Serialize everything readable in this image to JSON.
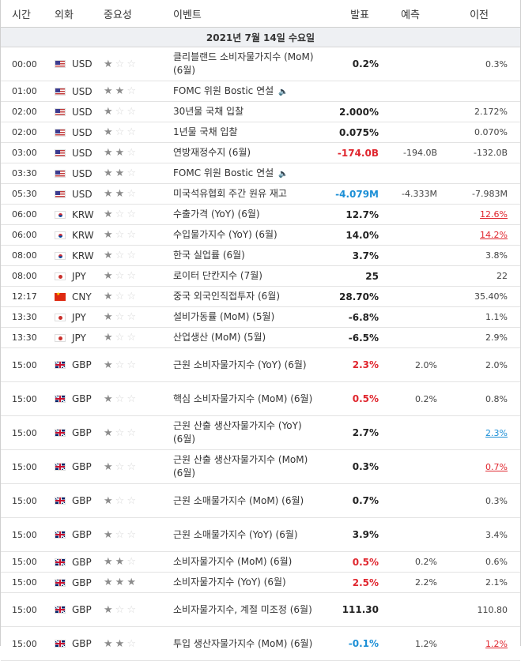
{
  "headers": {
    "time": "시간",
    "currency": "외화",
    "importance": "중요성",
    "event": "이벤트",
    "actual": "발표",
    "forecast": "예측",
    "previous": "이전"
  },
  "date_label": "2021년 7월 14일 수요일",
  "colors": {
    "positive": "#e0262e",
    "negative": "#1c8fd6",
    "neutral": "#222222",
    "date_row_bg": "#eef0f3"
  },
  "events": [
    {
      "time": "00:00",
      "flag": "US",
      "currency": "USD",
      "stars": 1,
      "name": "클리블랜드 소비자물가지수 (MoM) (6월)",
      "speaker": false,
      "actual": "0.2%",
      "actual_color": "black",
      "forecast": "",
      "previous": "0.3%",
      "previous_style": "normal"
    },
    {
      "time": "01:00",
      "flag": "US",
      "currency": "USD",
      "stars": 2,
      "name": "FOMC 위원 Bostic 연설",
      "speaker": true,
      "actual": "",
      "actual_color": "black",
      "forecast": "",
      "previous": "",
      "previous_style": "normal"
    },
    {
      "time": "02:00",
      "flag": "US",
      "currency": "USD",
      "stars": 1,
      "name": "30년물 국채 입찰",
      "speaker": false,
      "actual": "2.000%",
      "actual_color": "black",
      "forecast": "",
      "previous": "2.172%",
      "previous_style": "normal"
    },
    {
      "time": "02:00",
      "flag": "US",
      "currency": "USD",
      "stars": 1,
      "name": "1년물 국채 입찰",
      "speaker": false,
      "actual": "0.075%",
      "actual_color": "black",
      "forecast": "",
      "previous": "0.070%",
      "previous_style": "normal"
    },
    {
      "time": "03:00",
      "flag": "US",
      "currency": "USD",
      "stars": 2,
      "name": "연방재정수지 (6월)",
      "speaker": false,
      "actual": "-174.0B",
      "actual_color": "red",
      "forecast": "-194.0B",
      "previous": "-132.0B",
      "previous_style": "normal"
    },
    {
      "time": "03:30",
      "flag": "US",
      "currency": "USD",
      "stars": 2,
      "name": "FOMC 위원 Bostic 연설",
      "speaker": true,
      "actual": "",
      "actual_color": "black",
      "forecast": "",
      "previous": "",
      "previous_style": "normal"
    },
    {
      "time": "05:30",
      "flag": "US",
      "currency": "USD",
      "stars": 2,
      "name": "미국석유협회 주간 원유 재고",
      "speaker": false,
      "actual": "-4.079M",
      "actual_color": "blue",
      "forecast": "-4.333M",
      "previous": "-7.983M",
      "previous_style": "normal"
    },
    {
      "time": "06:00",
      "flag": "KR",
      "currency": "KRW",
      "stars": 1,
      "name": "수출가격 (YoY) (6월)",
      "speaker": false,
      "actual": "12.7%",
      "actual_color": "black",
      "forecast": "",
      "previous": "12.6%",
      "previous_style": "ul-red"
    },
    {
      "time": "06:00",
      "flag": "KR",
      "currency": "KRW",
      "stars": 1,
      "name": "수입물가지수 (YoY) (6월)",
      "speaker": false,
      "actual": "14.0%",
      "actual_color": "black",
      "forecast": "",
      "previous": "14.2%",
      "previous_style": "ul-red"
    },
    {
      "time": "08:00",
      "flag": "KR",
      "currency": "KRW",
      "stars": 1,
      "name": "한국 실업률 (6월)",
      "speaker": false,
      "actual": "3.7%",
      "actual_color": "black",
      "forecast": "",
      "previous": "3.8%",
      "previous_style": "normal"
    },
    {
      "time": "08:00",
      "flag": "JP",
      "currency": "JPY",
      "stars": 1,
      "name": "로이터 단칸지수 (7월)",
      "speaker": false,
      "actual": "25",
      "actual_color": "black",
      "forecast": "",
      "previous": "22",
      "previous_style": "normal"
    },
    {
      "time": "12:17",
      "flag": "CN",
      "currency": "CNY",
      "stars": 1,
      "name": "중국 외국인직접투자 (6월)",
      "speaker": false,
      "actual": "28.70%",
      "actual_color": "black",
      "forecast": "",
      "previous": "35.40%",
      "previous_style": "normal"
    },
    {
      "time": "13:30",
      "flag": "JP",
      "currency": "JPY",
      "stars": 1,
      "name": "설비가동률 (MoM) (5월)",
      "speaker": false,
      "actual": "-6.8%",
      "actual_color": "black",
      "forecast": "",
      "previous": "1.1%",
      "previous_style": "normal"
    },
    {
      "time": "13:30",
      "flag": "JP",
      "currency": "JPY",
      "stars": 1,
      "name": "산업생산 (MoM) (5월)",
      "speaker": false,
      "actual": "-6.5%",
      "actual_color": "black",
      "forecast": "",
      "previous": "2.9%",
      "previous_style": "normal"
    },
    {
      "time": "15:00",
      "flag": "GB",
      "currency": "GBP",
      "stars": 1,
      "name": "근원 소비자물가지수 (YoY) (6월)",
      "speaker": false,
      "actual": "2.3%",
      "actual_color": "red",
      "forecast": "2.0%",
      "previous": "2.0%",
      "previous_style": "normal"
    },
    {
      "time": "15:00",
      "flag": "GB",
      "currency": "GBP",
      "stars": 1,
      "name": "핵심 소비자물가지수 (MoM) (6월)",
      "speaker": false,
      "actual": "0.5%",
      "actual_color": "red",
      "forecast": "0.2%",
      "previous": "0.8%",
      "previous_style": "normal"
    },
    {
      "time": "15:00",
      "flag": "GB",
      "currency": "GBP",
      "stars": 1,
      "name": "근원 산출 생산자물가지수 (YoY) (6월)",
      "speaker": false,
      "actual": "2.7%",
      "actual_color": "black",
      "forecast": "",
      "previous": "2.3%",
      "previous_style": "ul-blue"
    },
    {
      "time": "15:00",
      "flag": "GB",
      "currency": "GBP",
      "stars": 1,
      "name": "근원 산출 생산자물가지수 (MoM) (6월)",
      "speaker": false,
      "actual": "0.3%",
      "actual_color": "black",
      "forecast": "",
      "previous": "0.7%",
      "previous_style": "ul-red"
    },
    {
      "time": "15:00",
      "flag": "GB",
      "currency": "GBP",
      "stars": 1,
      "name": "근원 소매물가지수 (MoM) (6월)",
      "speaker": false,
      "actual": "0.7%",
      "actual_color": "black",
      "forecast": "",
      "previous": "0.3%",
      "previous_style": "normal"
    },
    {
      "time": "15:00",
      "flag": "GB",
      "currency": "GBP",
      "stars": 1,
      "name": "근원 소매물가지수 (YoY) (6월)",
      "speaker": false,
      "actual": "3.9%",
      "actual_color": "black",
      "forecast": "",
      "previous": "3.4%",
      "previous_style": "normal"
    },
    {
      "time": "15:00",
      "flag": "GB",
      "currency": "GBP",
      "stars": 2,
      "name": "소비자물가지수 (MoM) (6월)",
      "speaker": false,
      "actual": "0.5%",
      "actual_color": "red",
      "forecast": "0.2%",
      "previous": "0.6%",
      "previous_style": "normal"
    },
    {
      "time": "15:00",
      "flag": "GB",
      "currency": "GBP",
      "stars": 3,
      "name": "소비자물가지수 (YoY) (6월)",
      "speaker": false,
      "actual": "2.5%",
      "actual_color": "red",
      "forecast": "2.2%",
      "previous": "2.1%",
      "previous_style": "normal"
    },
    {
      "time": "15:00",
      "flag": "GB",
      "currency": "GBP",
      "stars": 1,
      "name": "소비자물가지수, 계절 미조정 (6월)",
      "speaker": false,
      "actual": "111.30",
      "actual_color": "black",
      "forecast": "",
      "previous": "110.80",
      "previous_style": "normal"
    },
    {
      "time": "15:00",
      "flag": "GB",
      "currency": "GBP",
      "stars": 2,
      "name": "투입 생산자물가지수 (MoM) (6월)",
      "speaker": false,
      "actual": "-0.1%",
      "actual_color": "blue",
      "forecast": "1.2%",
      "previous": "1.2%",
      "previous_style": "ul-red"
    }
  ]
}
